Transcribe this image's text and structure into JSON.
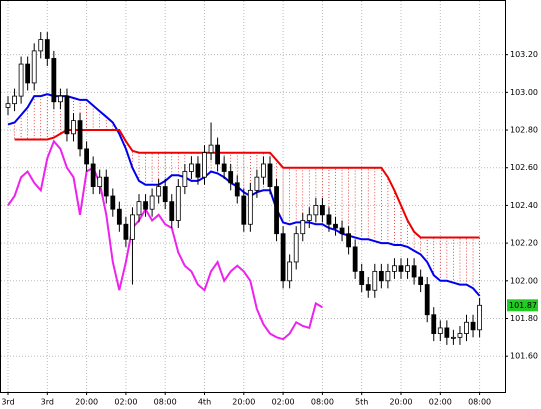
{
  "chart_data": {
    "type": "candlestick",
    "categories": [
      "3rd",
      null,
      null,
      null,
      null,
      null,
      "3rd",
      null,
      null,
      null,
      null,
      null,
      "20:00",
      null,
      null,
      null,
      null,
      null,
      "02:00",
      null,
      null,
      null,
      null,
      null,
      "08:00",
      null,
      null,
      null,
      null,
      null,
      "4th",
      null,
      null,
      null,
      null,
      null,
      "20:00",
      null,
      null,
      null,
      null,
      null,
      "02:00",
      null,
      null,
      null,
      null,
      null,
      "08:00",
      null,
      null,
      null,
      null,
      null,
      "5th",
      null,
      null,
      null,
      null,
      null,
      "20:00",
      null,
      null,
      null,
      null,
      null,
      "02:00",
      null,
      null,
      null,
      null,
      null,
      "08:00"
    ],
    "open": [
      102.92,
      102.94,
      102.98,
      103.15,
      103.05,
      103.22,
      103.28,
      103.18,
      102.95,
      102.98,
      102.78,
      102.85,
      102.7,
      102.62,
      102.5,
      102.55,
      102.45,
      102.38,
      102.3,
      102.22,
      102.35,
      102.42,
      102.38,
      102.45,
      102.5,
      102.42,
      102.32,
      102.5,
      102.58,
      102.62,
      102.55,
      102.68,
      102.72,
      102.62,
      102.58,
      102.52,
      102.45,
      102.3,
      102.48,
      102.55,
      102.62,
      102.5,
      102.25,
      102.0,
      102.1,
      102.25,
      102.32,
      102.35,
      102.4,
      102.35,
      102.3,
      102.28,
      102.25,
      102.18,
      102.05,
      101.98,
      101.95,
      102.05,
      102.0,
      102.05,
      102.08,
      102.05,
      102.08,
      102.02,
      101.98,
      101.82,
      101.72,
      101.75,
      101.7,
      101.7,
      101.72,
      101.78,
      101.74
    ],
    "high": [
      102.98,
      103.02,
      103.19,
      103.19,
      103.26,
      103.32,
      103.32,
      103.22,
      103.02,
      103.02,
      102.89,
      102.89,
      102.74,
      102.66,
      102.59,
      102.59,
      102.49,
      102.42,
      102.34,
      102.39,
      102.46,
      102.46,
      102.49,
      102.54,
      102.54,
      102.46,
      102.54,
      102.62,
      102.66,
      102.66,
      102.72,
      102.84,
      102.76,
      102.66,
      102.62,
      102.56,
      102.49,
      102.52,
      102.59,
      102.66,
      102.66,
      102.54,
      102.29,
      102.14,
      102.29,
      102.36,
      102.39,
      102.44,
      102.44,
      102.39,
      102.34,
      102.32,
      102.29,
      102.22,
      102.09,
      102.02,
      102.09,
      102.09,
      102.09,
      102.12,
      102.12,
      102.12,
      102.12,
      102.06,
      102.02,
      101.86,
      101.79,
      101.79,
      101.74,
      101.76,
      101.82,
      101.82,
      101.91
    ],
    "low": [
      102.88,
      102.9,
      102.94,
      103.01,
      103.01,
      103.18,
      103.14,
      102.91,
      102.91,
      102.74,
      102.74,
      102.66,
      102.58,
      102.46,
      102.46,
      102.41,
      102.34,
      102.26,
      102.18,
      101.98,
      102.31,
      102.34,
      102.34,
      102.41,
      102.38,
      102.28,
      102.28,
      102.46,
      102.54,
      102.51,
      102.51,
      102.64,
      102.58,
      102.54,
      102.48,
      102.41,
      102.26,
      102.26,
      102.44,
      102.51,
      102.46,
      102.21,
      101.96,
      101.96,
      102.06,
      102.21,
      102.28,
      102.31,
      102.31,
      102.26,
      102.24,
      102.21,
      102.14,
      102.01,
      101.94,
      101.91,
      101.91,
      101.96,
      101.96,
      102.01,
      102.01,
      102.01,
      101.98,
      101.94,
      101.78,
      101.68,
      101.68,
      101.66,
      101.66,
      101.66,
      101.68,
      101.7,
      101.7
    ],
    "close": [
      102.94,
      102.98,
      103.15,
      103.05,
      103.22,
      103.28,
      103.18,
      102.95,
      102.98,
      102.78,
      102.85,
      102.7,
      102.62,
      102.5,
      102.55,
      102.45,
      102.38,
      102.3,
      102.22,
      102.35,
      102.42,
      102.38,
      102.45,
      102.5,
      102.42,
      102.32,
      102.5,
      102.58,
      102.62,
      102.55,
      102.68,
      102.72,
      102.62,
      102.58,
      102.52,
      102.45,
      102.3,
      102.48,
      102.55,
      102.62,
      102.5,
      102.25,
      102.0,
      102.1,
      102.25,
      102.32,
      102.35,
      102.4,
      102.35,
      102.3,
      102.28,
      102.25,
      102.18,
      102.05,
      101.98,
      101.95,
      102.05,
      102.0,
      102.05,
      102.08,
      102.05,
      102.08,
      102.02,
      101.98,
      101.82,
      101.72,
      101.75,
      101.7,
      101.7,
      101.72,
      101.78,
      101.74,
      101.87
    ],
    "lines": [
      {
        "color": "#0000ee",
        "values": [
          102.83,
          102.84,
          102.88,
          102.92,
          102.98,
          102.98,
          102.99,
          102.98,
          102.98,
          102.98,
          102.97,
          102.96,
          102.96,
          102.93,
          102.9,
          102.87,
          102.84,
          102.78,
          102.7,
          102.6,
          102.53,
          102.51,
          102.51,
          102.51,
          102.53,
          102.56,
          102.56,
          102.55,
          102.53,
          102.53,
          102.55,
          102.58,
          102.57,
          102.55,
          102.52,
          102.5,
          102.47,
          102.45,
          102.47,
          102.48,
          102.48,
          102.38,
          102.31,
          102.3,
          102.31,
          102.31,
          102.31,
          102.3,
          102.3,
          102.28,
          102.27,
          102.25,
          102.24,
          102.23,
          102.22,
          102.22,
          102.21,
          102.2,
          102.2,
          102.19,
          102.19,
          102.18,
          102.16,
          102.14,
          102.1,
          102.03,
          102.0,
          102.0,
          101.99,
          101.98,
          101.98,
          101.96,
          101.92
        ]
      },
      {
        "color": "#ee0000",
        "values": [
          null,
          102.75,
          102.75,
          102.75,
          102.75,
          102.75,
          102.75,
          102.76,
          102.78,
          102.8,
          102.8,
          102.8,
          102.8,
          102.8,
          102.8,
          102.8,
          102.8,
          102.8,
          102.74,
          102.69,
          102.68,
          102.68,
          102.68,
          102.68,
          102.68,
          102.68,
          102.68,
          102.68,
          102.68,
          102.68,
          102.68,
          102.68,
          102.68,
          102.68,
          102.68,
          102.68,
          102.68,
          102.68,
          102.68,
          102.68,
          102.68,
          102.64,
          102.6,
          102.6,
          102.6,
          102.6,
          102.6,
          102.6,
          102.6,
          102.6,
          102.6,
          102.6,
          102.6,
          102.6,
          102.6,
          102.6,
          102.6,
          102.6,
          102.55,
          102.48,
          102.4,
          102.32,
          102.26,
          102.23,
          102.23,
          102.23,
          102.23,
          102.23,
          102.23,
          102.23,
          102.23,
          102.23,
          102.23
        ]
      },
      {
        "color": "#ee22ee",
        "values": [
          102.4,
          102.45,
          102.55,
          102.58,
          102.52,
          102.48,
          102.65,
          102.74,
          102.7,
          102.6,
          102.55,
          102.35,
          102.58,
          102.6,
          102.52,
          102.35,
          102.1,
          101.95,
          102.1,
          102.28,
          102.32,
          102.38,
          102.32,
          102.35,
          102.3,
          102.28,
          102.15,
          102.08,
          102.05,
          101.98,
          101.95,
          102.05,
          102.1,
          102.0,
          102.05,
          102.08,
          102.05,
          102.0,
          101.85,
          101.77,
          101.72,
          101.7,
          101.69,
          101.72,
          101.78,
          101.76,
          101.75,
          101.88,
          101.86,
          null,
          null,
          null,
          null,
          null,
          null,
          null,
          null,
          null,
          null,
          null,
          null,
          null,
          null,
          null,
          null,
          null,
          null,
          null,
          null,
          null,
          null,
          null,
          null
        ]
      }
    ],
    "ylim": [
      101.41,
      103.49
    ],
    "yticks": [
      {
        "value": 101.6,
        "label": "101.60"
      },
      {
        "value": 101.8,
        "label": "101.80"
      },
      {
        "value": 102,
        "label": "102.00"
      },
      {
        "value": 102.2,
        "label": "102.20"
      },
      {
        "value": 102.4,
        "label": "102.40"
      },
      {
        "value": 102.6,
        "label": "102.60"
      },
      {
        "value": 102.8,
        "label": "102.80"
      },
      {
        "value": 103,
        "label": "103.00"
      },
      {
        "value": 103.2,
        "label": "103.20"
      }
    ],
    "last_price": {
      "value": 101.87,
      "label": "101.87",
      "color": "#22cc22"
    },
    "grid": true
  }
}
